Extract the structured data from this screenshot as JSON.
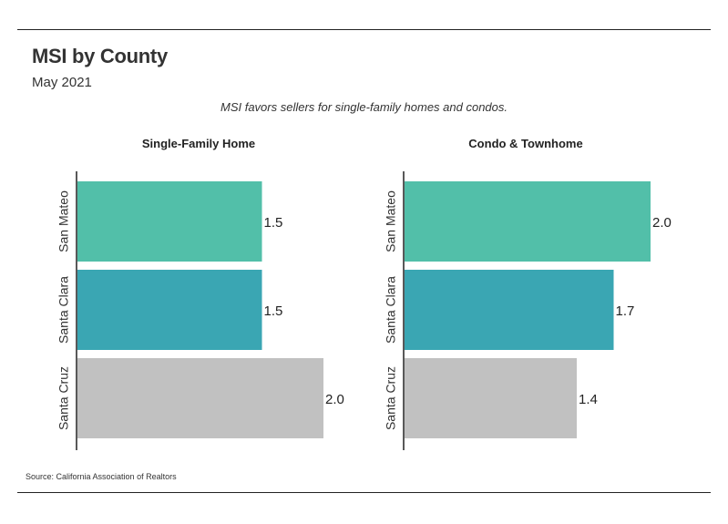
{
  "header": {
    "title": "MSI by County",
    "subtitle": "May 2021",
    "note": "MSI favors sellers for single-family homes and condos."
  },
  "footer": {
    "source": "Source:  California Association of Realtors"
  },
  "colors": {
    "green": "#52bfa9",
    "teal": "#3aa6b3",
    "gray": "#c1c1c1",
    "axis": "#222222"
  },
  "chart_data": [
    {
      "type": "bar",
      "orientation": "horizontal",
      "title": "Single-Family Home",
      "categories": [
        "San Mateo",
        "Santa Clara",
        "Santa Cruz"
      ],
      "values": [
        1.5,
        1.5,
        2.0
      ],
      "value_labels": [
        "1.5",
        "1.5",
        "2.0"
      ],
      "bar_colors": [
        "#52bfa9",
        "#3aa6b3",
        "#c1c1c1"
      ],
      "xlim": [
        0,
        2.0
      ]
    },
    {
      "type": "bar",
      "orientation": "horizontal",
      "title": "Condo & Townhome",
      "categories": [
        "San Mateo",
        "Santa Clara",
        "Santa Cruz"
      ],
      "values": [
        2.0,
        1.7,
        1.4
      ],
      "value_labels": [
        "2.0",
        "1.7",
        "1.4"
      ],
      "bar_colors": [
        "#52bfa9",
        "#3aa6b3",
        "#c1c1c1"
      ],
      "xlim": [
        0,
        2.0
      ]
    }
  ]
}
